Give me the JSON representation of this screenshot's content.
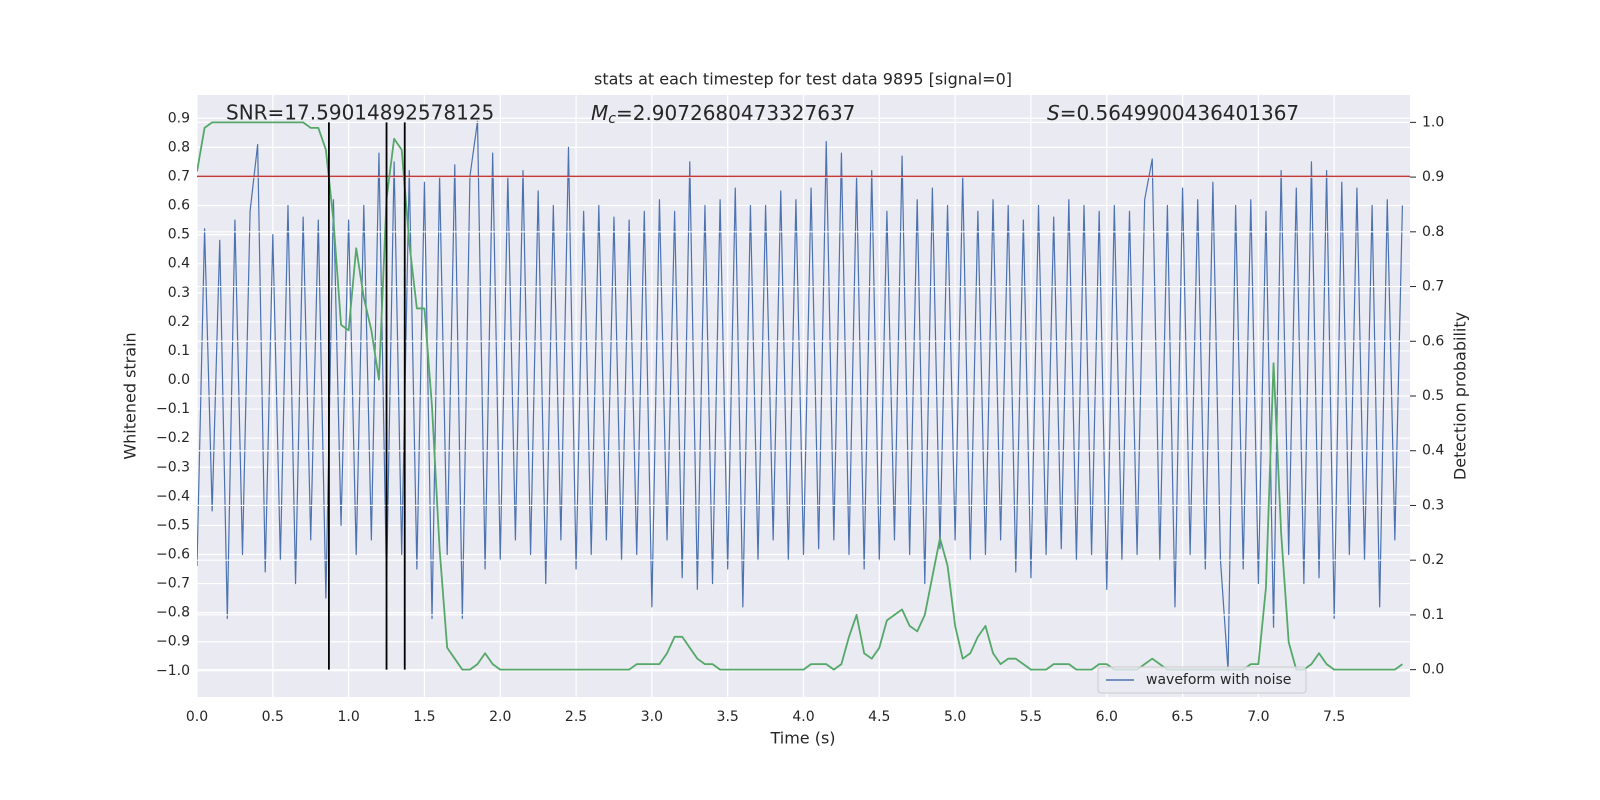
{
  "chart_data": {
    "type": "line",
    "title": "stats at each timestep for test data 9895 [signal=0]",
    "xlabel": "Time (s)",
    "ylabel": "Whitened strain",
    "y2label": "Detection probability",
    "annotations": {
      "snr": "SNR=17.59014892578125",
      "mc": {
        "symbol": "M",
        "subscript": "c",
        "text": "=2.9072680473327637"
      },
      "s": {
        "symbol": "S",
        "text": "=0.5649900436401367"
      }
    },
    "xlim": [
      0,
      8
    ],
    "ylim": [
      -1.09,
      0.98
    ],
    "y2lim": [
      -0.05,
      1.05
    ],
    "grid": true,
    "legend": "lower right",
    "xticks": [
      {
        "value": 0,
        "label": "0.0"
      },
      {
        "value": 0.5,
        "label": "0.5"
      },
      {
        "value": 1,
        "label": "1.0"
      },
      {
        "value": 1.5,
        "label": "1.5"
      },
      {
        "value": 2,
        "label": "2.0"
      },
      {
        "value": 2.5,
        "label": "2.5"
      },
      {
        "value": 3,
        "label": "3.0"
      },
      {
        "value": 3.5,
        "label": "3.5"
      },
      {
        "value": 4,
        "label": "4.0"
      },
      {
        "value": 4.5,
        "label": "4.5"
      },
      {
        "value": 5,
        "label": "5.0"
      },
      {
        "value": 5.5,
        "label": "5.5"
      },
      {
        "value": 6,
        "label": "6.0"
      },
      {
        "value": 6.5,
        "label": "6.5"
      },
      {
        "value": 7,
        "label": "7.0"
      },
      {
        "value": 7.5,
        "label": "7.5"
      }
    ],
    "yticks": [
      {
        "value": -1,
        "label": "−1.0"
      },
      {
        "value": -0.9,
        "label": "−0.9"
      },
      {
        "value": -0.8,
        "label": "−0.8"
      },
      {
        "value": -0.7,
        "label": "−0.7"
      },
      {
        "value": -0.6,
        "label": "−0.6"
      },
      {
        "value": -0.5,
        "label": "−0.5"
      },
      {
        "value": -0.4,
        "label": "−0.4"
      },
      {
        "value": -0.3,
        "label": "−0.3"
      },
      {
        "value": -0.2,
        "label": "−0.2"
      },
      {
        "value": -0.1,
        "label": "−0.1"
      },
      {
        "value": 0,
        "label": "0.0"
      },
      {
        "value": 0.1,
        "label": "0.1"
      },
      {
        "value": 0.2,
        "label": "0.2"
      },
      {
        "value": 0.3,
        "label": "0.3"
      },
      {
        "value": 0.4,
        "label": "0.4"
      },
      {
        "value": 0.5,
        "label": "0.5"
      },
      {
        "value": 0.6,
        "label": "0.6"
      },
      {
        "value": 0.7,
        "label": "0.7"
      },
      {
        "value": 0.8,
        "label": "0.8"
      },
      {
        "value": 0.9,
        "label": "0.9"
      }
    ],
    "y2ticks": [
      {
        "value": 0,
        "label": "0.0"
      },
      {
        "value": 0.1,
        "label": "0.1"
      },
      {
        "value": 0.2,
        "label": "0.2"
      },
      {
        "value": 0.3,
        "label": "0.3"
      },
      {
        "value": 0.4,
        "label": "0.4"
      },
      {
        "value": 0.5,
        "label": "0.5"
      },
      {
        "value": 0.6,
        "label": "0.6"
      },
      {
        "value": 0.7,
        "label": "0.7"
      },
      {
        "value": 0.8,
        "label": "0.8"
      },
      {
        "value": 0.9,
        "label": "0.9"
      },
      {
        "value": 1,
        "label": "1.0"
      }
    ],
    "hline": {
      "y": 0.7,
      "color": "#c03d3e"
    },
    "vlines": {
      "x": [
        0.87,
        1.25,
        1.37
      ],
      "y2_range": [
        0,
        1
      ],
      "color": "#000000"
    },
    "x": [
      0,
      0.05,
      0.1,
      0.15,
      0.2,
      0.25,
      0.3,
      0.35,
      0.4,
      0.45,
      0.5,
      0.55,
      0.6,
      0.65,
      0.7,
      0.75,
      0.8,
      0.85,
      0.9,
      0.95,
      1,
      1.05,
      1.1,
      1.15,
      1.2,
      1.25,
      1.3,
      1.35,
      1.4,
      1.45,
      1.5,
      1.55,
      1.6,
      1.65,
      1.7,
      1.75,
      1.8,
      1.85,
      1.9,
      1.95,
      2,
      2.05,
      2.1,
      2.15,
      2.2,
      2.25,
      2.3,
      2.35,
      2.4,
      2.45,
      2.5,
      2.55,
      2.6,
      2.65,
      2.7,
      2.75,
      2.8,
      2.85,
      2.9,
      2.95,
      3,
      3.05,
      3.1,
      3.15,
      3.2,
      3.25,
      3.3,
      3.35,
      3.4,
      3.45,
      3.5,
      3.55,
      3.6,
      3.65,
      3.7,
      3.75,
      3.8,
      3.85,
      3.9,
      3.95,
      4,
      4.05,
      4.1,
      4.15,
      4.2,
      4.25,
      4.3,
      4.35,
      4.4,
      4.45,
      4.5,
      4.55,
      4.6,
      4.65,
      4.7,
      4.75,
      4.8,
      4.85,
      4.9,
      4.95,
      5,
      5.05,
      5.1,
      5.15,
      5.2,
      5.25,
      5.3,
      5.35,
      5.4,
      5.45,
      5.5,
      5.55,
      5.6,
      5.65,
      5.7,
      5.75,
      5.8,
      5.85,
      5.9,
      5.95,
      6,
      6.05,
      6.1,
      6.15,
      6.2,
      6.25,
      6.3,
      6.35,
      6.4,
      6.45,
      6.5,
      6.55,
      6.6,
      6.65,
      6.7,
      6.75,
      6.8,
      6.85,
      6.9,
      6.95,
      7,
      7.05,
      7.1,
      7.15,
      7.2,
      7.25,
      7.3,
      7.35,
      7.4,
      7.45,
      7.5,
      7.55,
      7.6,
      7.65,
      7.7,
      7.75,
      7.8,
      7.85,
      7.9,
      7.95
    ],
    "series": [
      {
        "name": "waveform with noise",
        "color": "#4c72b0",
        "values": [
          -0.64,
          0.52,
          -0.45,
          0.48,
          -0.82,
          0.55,
          -0.6,
          0.58,
          0.81,
          -0.66,
          0.5,
          -0.62,
          0.6,
          -0.7,
          0.56,
          -0.55,
          0.55,
          -0.75,
          0.62,
          -0.5,
          0.55,
          -0.6,
          0.6,
          -0.55,
          0.78,
          -0.7,
          0.75,
          -0.6,
          0.72,
          -0.65,
          0.68,
          -0.82,
          0.7,
          -0.6,
          0.74,
          -0.82,
          0.7,
          0.89,
          -0.65,
          0.78,
          -0.62,
          0.7,
          -0.55,
          0.72,
          -0.6,
          0.65,
          -0.7,
          0.6,
          -0.55,
          0.8,
          -0.65,
          0.58,
          -0.6,
          0.6,
          -0.55,
          0.56,
          -0.62,
          0.55,
          -0.6,
          0.58,
          -0.78,
          0.62,
          -0.55,
          0.58,
          -0.68,
          0.75,
          -0.72,
          0.6,
          -0.7,
          0.62,
          -0.65,
          0.66,
          -0.78,
          0.6,
          -0.62,
          0.6,
          -0.55,
          0.65,
          -0.62,
          0.62,
          -0.6,
          0.66,
          -0.58,
          0.82,
          -0.55,
          0.78,
          -0.6,
          0.7,
          -0.65,
          0.72,
          -0.62,
          0.58,
          -0.55,
          0.77,
          -0.6,
          0.62,
          -0.7,
          0.66,
          -0.58,
          0.6,
          -0.55,
          0.7,
          -0.62,
          0.58,
          -0.6,
          0.62,
          -0.55,
          0.6,
          -0.66,
          0.55,
          -0.68,
          0.6,
          -0.6,
          0.56,
          -0.58,
          0.62,
          -0.62,
          0.6,
          -0.6,
          0.58,
          -0.72,
          0.6,
          -0.62,
          0.58,
          -0.6,
          0.62,
          0.76,
          -0.62,
          0.6,
          -0.78,
          0.66,
          -0.6,
          0.62,
          -0.65,
          0.68,
          -0.62,
          -1.0,
          0.6,
          -0.65,
          0.62,
          -0.7,
          0.58,
          -0.85,
          0.72,
          -0.6,
          0.66,
          -0.7,
          0.75,
          -0.68,
          0.72,
          -0.82,
          0.68,
          -0.6,
          0.66,
          -0.62,
          0.6,
          -0.78,
          0.62,
          -0.55,
          0.6
        ]
      },
      {
        "color": "#55a868",
        "axis": "y2",
        "values": [
          0.91,
          0.99,
          1.0,
          1.0,
          1.0,
          1.0,
          1.0,
          1.0,
          1.0,
          1.0,
          1.0,
          1.0,
          1.0,
          1.0,
          1.0,
          0.99,
          0.99,
          0.95,
          0.82,
          0.63,
          0.62,
          0.77,
          0.68,
          0.62,
          0.53,
          0.86,
          0.97,
          0.95,
          0.78,
          0.66,
          0.66,
          0.48,
          0.22,
          0.04,
          0.02,
          0.0,
          0.0,
          0.01,
          0.03,
          0.01,
          0,
          0,
          0,
          0,
          0,
          0,
          0,
          0,
          0,
          0,
          0,
          0,
          0,
          0,
          0,
          0,
          0,
          0,
          0.01,
          0.01,
          0.01,
          0.01,
          0.03,
          0.06,
          0.06,
          0.04,
          0.02,
          0.01,
          0.01,
          0,
          0,
          0,
          0,
          0,
          0,
          0,
          0,
          0,
          0,
          0,
          0,
          0.01,
          0.01,
          0.01,
          0,
          0.01,
          0.06,
          0.1,
          0.03,
          0.02,
          0.04,
          0.09,
          0.1,
          0.11,
          0.08,
          0.07,
          0.1,
          0.17,
          0.24,
          0.19,
          0.08,
          0.02,
          0.03,
          0.06,
          0.08,
          0.03,
          0.01,
          0.02,
          0.02,
          0.01,
          0,
          0,
          0,
          0.01,
          0.01,
          0.01,
          0,
          0,
          0,
          0.01,
          0.01,
          0,
          0,
          0,
          0,
          0.01,
          0.02,
          0.01,
          0,
          0,
          0,
          0,
          0,
          0,
          0,
          0,
          0,
          0,
          0,
          0.01,
          0.01,
          0.15,
          0.56,
          0.25,
          0.05,
          0,
          0,
          0.01,
          0.03,
          0.01,
          0,
          0,
          0,
          0,
          0,
          0,
          0,
          0,
          0,
          0.01
        ]
      }
    ]
  }
}
